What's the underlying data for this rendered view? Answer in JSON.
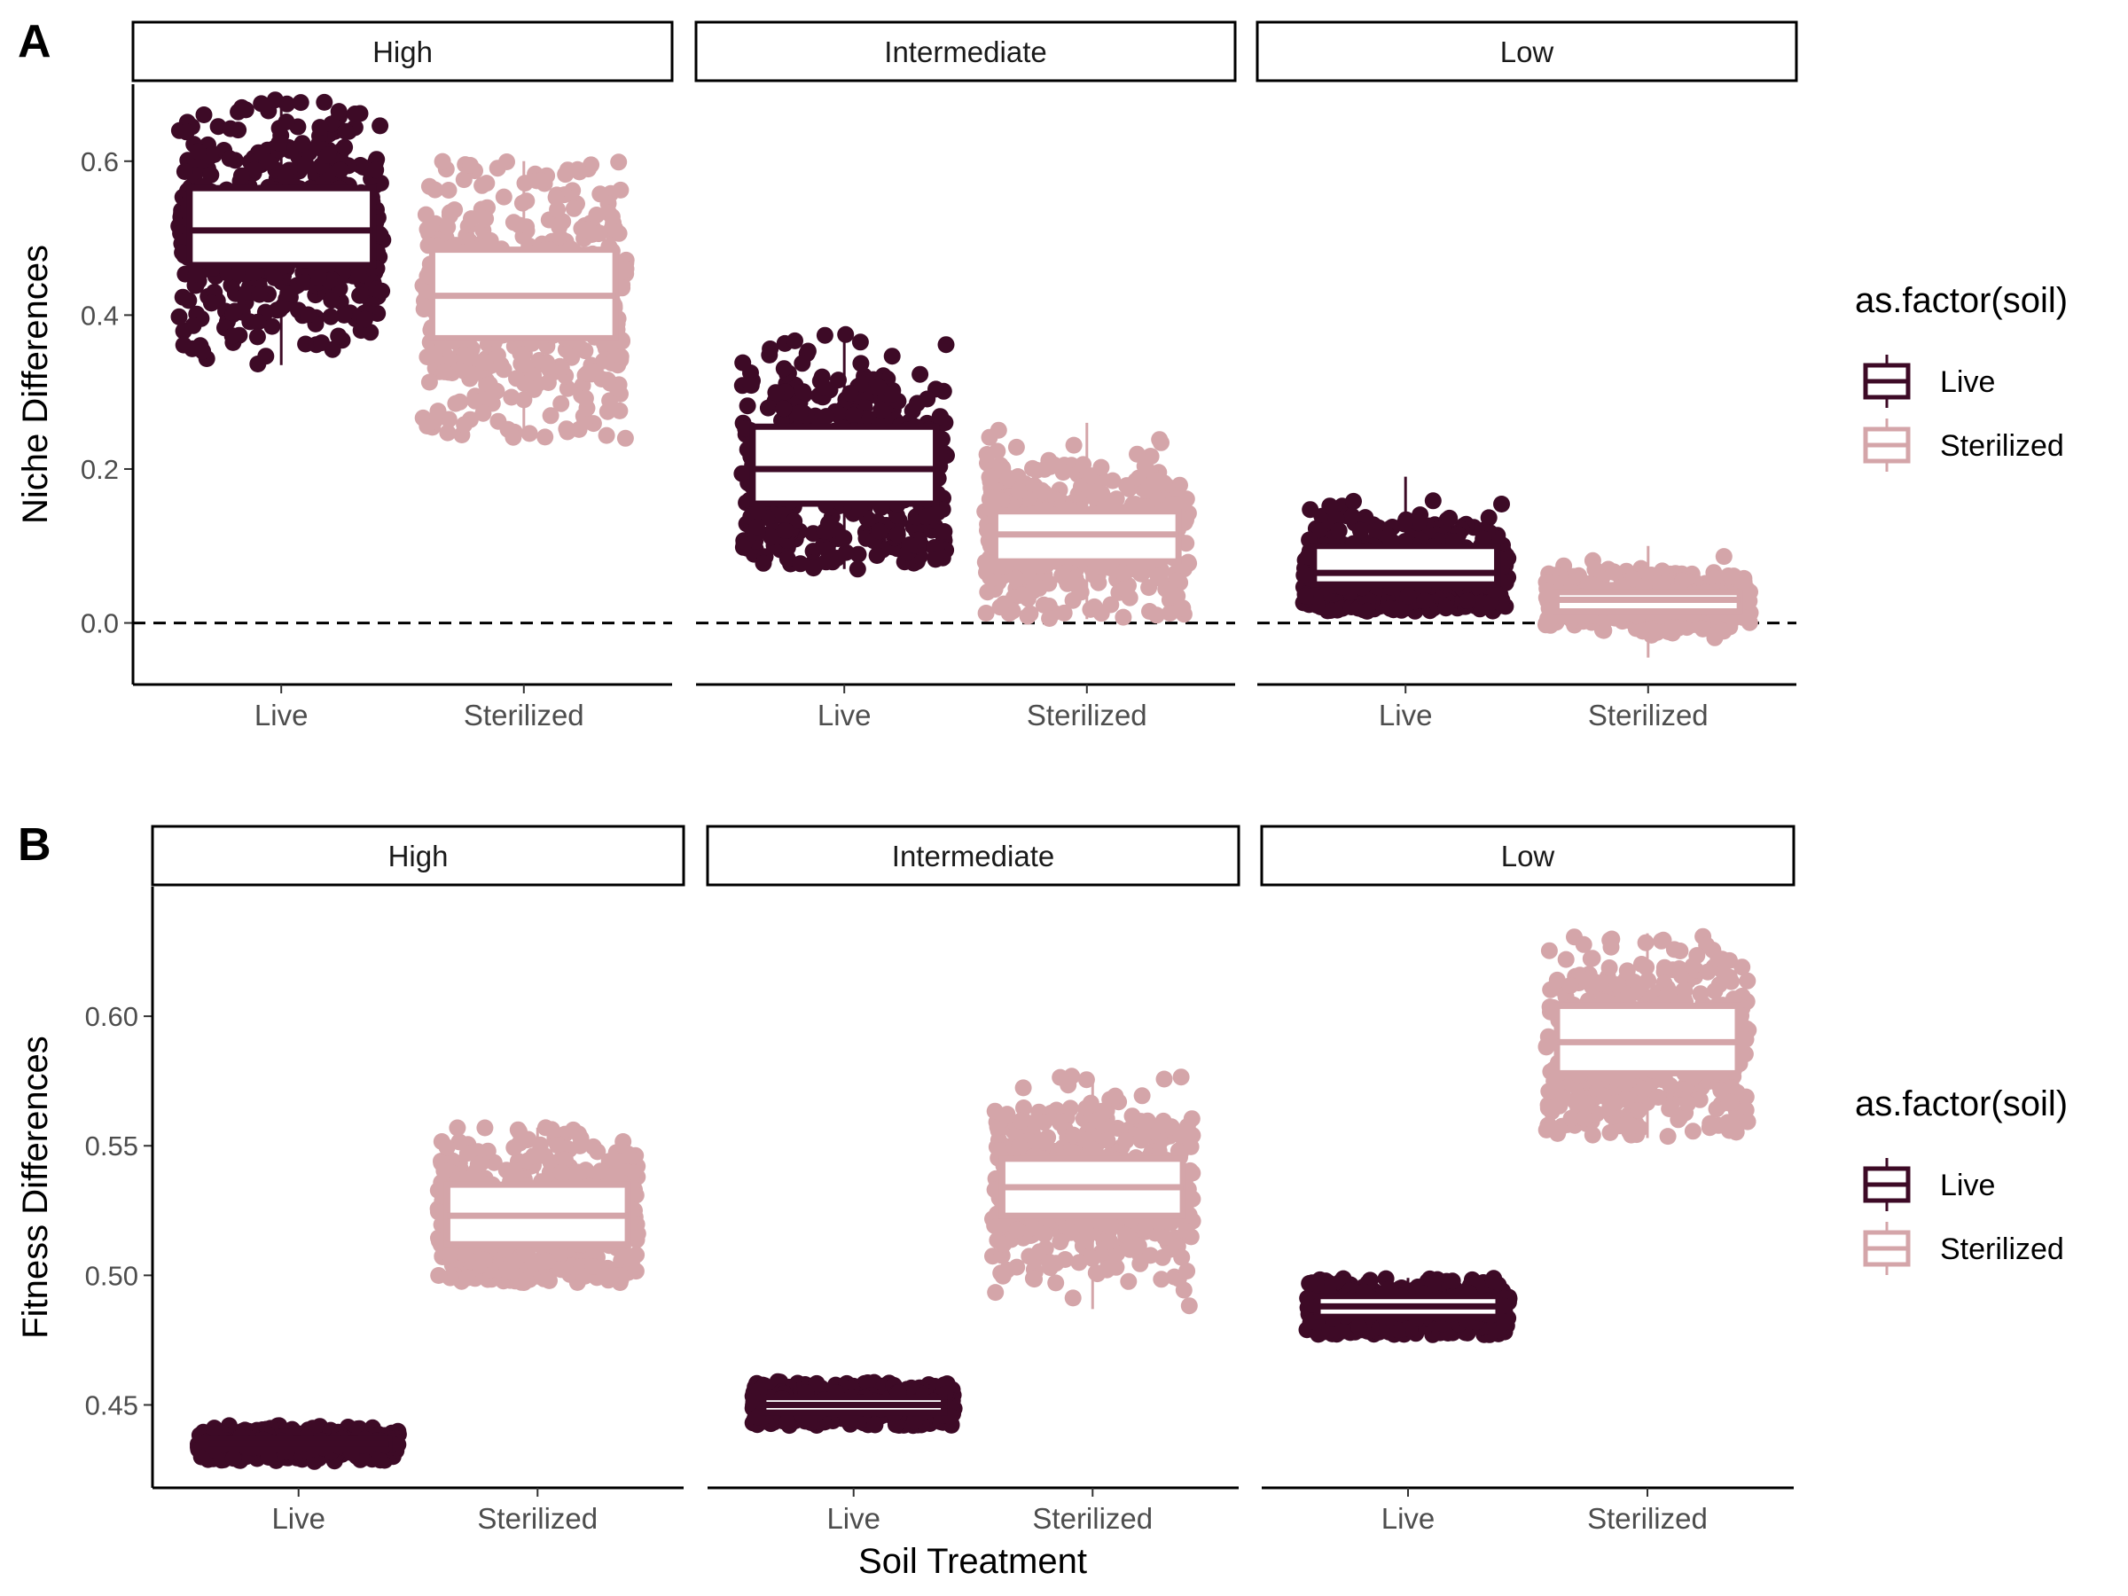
{
  "colors": {
    "live": "#3d0a26",
    "sterilized": "#d4a5a9",
    "axis": "#000000",
    "tick_text": "#4d4d4d"
  },
  "legend": {
    "title": "as.factor(soil)",
    "entries": [
      {
        "label": "Live",
        "color": "#3d0a26"
      },
      {
        "label": "Sterilized",
        "color": "#d4a5a9"
      }
    ]
  },
  "x_title": "Soil Treatment",
  "chart_data": [
    {
      "panel_label": "A",
      "type": "boxplot+jitter",
      "ylabel": "Niche Differences",
      "ylim": [
        -0.08,
        0.7
      ],
      "yticks": [
        0.0,
        0.2,
        0.4,
        0.6
      ],
      "ytick_labels": [
        "0.0",
        "0.2",
        "0.4",
        "0.6"
      ],
      "reference_line": {
        "y": 0.0,
        "style": "dashed"
      },
      "categories": [
        "Live",
        "Sterilized"
      ],
      "facets": [
        {
          "label": "High",
          "groups": [
            {
              "category": "Live",
              "min": 0.335,
              "q1": 0.465,
              "median": 0.51,
              "q3": 0.565,
              "max": 0.68
            },
            {
              "category": "Sterilized",
              "min": 0.24,
              "q1": 0.37,
              "median": 0.425,
              "q3": 0.485,
              "max": 0.6
            }
          ]
        },
        {
          "label": "Intermediate",
          "groups": [
            {
              "category": "Live",
              "min": 0.07,
              "q1": 0.155,
              "median": 0.2,
              "q3": 0.255,
              "max": 0.375
            },
            {
              "category": "Sterilized",
              "min": 0.005,
              "q1": 0.08,
              "median": 0.115,
              "q3": 0.145,
              "max": 0.26
            }
          ]
        },
        {
          "label": "Low",
          "groups": [
            {
              "category": "Live",
              "min": 0.015,
              "q1": 0.05,
              "median": 0.065,
              "q3": 0.1,
              "max": 0.19
            },
            {
              "category": "Sterilized",
              "min": -0.045,
              "q1": 0.015,
              "median": 0.03,
              "q3": 0.04,
              "max": 0.1
            }
          ]
        }
      ]
    },
    {
      "panel_label": "B",
      "type": "boxplot+jitter",
      "ylabel": "Fitness Differences",
      "ylim": [
        0.418,
        0.65
      ],
      "yticks": [
        0.45,
        0.5,
        0.55,
        0.6
      ],
      "ytick_labels": [
        "0.45",
        "0.50",
        "0.55",
        "0.60"
      ],
      "categories": [
        "Live",
        "Sterilized"
      ],
      "facets": [
        {
          "label": "High",
          "groups": [
            {
              "category": "Live",
              "min": 0.428,
              "q1": 0.433,
              "median": 0.435,
              "q3": 0.437,
              "max": 0.442
            },
            {
              "category": "Sterilized",
              "min": 0.497,
              "q1": 0.512,
              "median": 0.523,
              "q3": 0.535,
              "max": 0.557
            }
          ]
        },
        {
          "label": "Intermediate",
          "groups": [
            {
              "category": "Live",
              "min": 0.442,
              "q1": 0.447,
              "median": 0.45,
              "q3": 0.453,
              "max": 0.459
            },
            {
              "category": "Sterilized",
              "min": 0.487,
              "q1": 0.523,
              "median": 0.534,
              "q3": 0.545,
              "max": 0.577
            }
          ]
        },
        {
          "label": "Low",
          "groups": [
            {
              "category": "Live",
              "min": 0.477,
              "q1": 0.484,
              "median": 0.488,
              "q3": 0.492,
              "max": 0.499
            },
            {
              "category": "Sterilized",
              "min": 0.553,
              "q1": 0.578,
              "median": 0.59,
              "q3": 0.604,
              "max": 0.632
            }
          ]
        }
      ]
    }
  ]
}
